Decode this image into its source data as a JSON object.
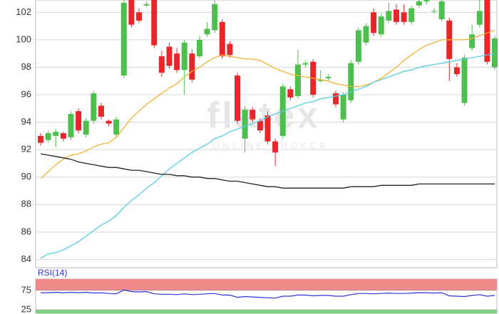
{
  "chart_data": [
    {
      "type": "candlestick",
      "open": [
        93.0,
        92.7,
        93.0,
        93.2,
        92.9,
        94.8,
        93.1,
        94.1,
        95.2,
        94.1,
        93.1,
        97.4,
        103.0,
        102.0,
        102.5,
        103.0,
        98.8,
        99.5,
        99.0,
        97.8,
        99.0,
        98.8,
        100.4,
        100.7,
        101.3,
        99.7,
        97.4,
        92.8,
        94.9,
        94.1,
        94.5,
        92.6,
        93.0,
        96.4,
        95.9,
        98.2,
        98.4,
        97.0,
        97.2,
        96.1,
        94.2,
        95.6,
        98.4,
        99.8,
        102.0,
        100.4,
        101.4,
        102.2,
        102.0,
        101.3,
        102.5,
        102.8,
        102.1,
        101.5,
        101.4,
        98.0,
        95.4,
        99.4,
        101.1,
        102.9,
        98.0
      ],
      "high": [
        93.2,
        93.4,
        93.5,
        93.3,
        94.8,
        95.0,
        94.3,
        96.3,
        95.4,
        94.2,
        94.4,
        103.0,
        103.3,
        102.3,
        102.8,
        103.2,
        99.2,
        99.8,
        99.4,
        100.0,
        99.3,
        100.3,
        101.3,
        103.0,
        101.5,
        99.9,
        97.6,
        95.2,
        95.1,
        94.3,
        94.8,
        92.8,
        96.8,
        96.6,
        99.3,
        98.5,
        98.6,
        97.8,
        97.5,
        96.3,
        96.2,
        98.5,
        100.9,
        101.2,
        102.3,
        101.9,
        102.7,
        102.6,
        102.6,
        102.5,
        103.0,
        103.0,
        102.3,
        103.0,
        101.6,
        98.3,
        98.9,
        101.1,
        102.9,
        103.0,
        100.3
      ],
      "low": [
        92.3,
        92.5,
        92.2,
        92.6,
        92.7,
        93.2,
        92.9,
        93.9,
        94.2,
        93.7,
        92.9,
        97.2,
        100.9,
        101.2,
        102.4,
        99.4,
        97.3,
        97.9,
        97.6,
        96.0,
        96.9,
        98.6,
        100.2,
        100.5,
        98.6,
        98.7,
        93.9,
        91.8,
        94.0,
        93.2,
        92.4,
        90.8,
        92.8,
        95.6,
        95.7,
        98.0,
        95.8,
        96.9,
        97.0,
        95.1,
        94.0,
        95.4,
        98.2,
        99.6,
        100.3,
        100.2,
        101.2,
        101.1,
        101.1,
        101.1,
        102.3,
        102.6,
        101.9,
        101.3,
        97.0,
        97.3,
        95.2,
        99.2,
        100.9,
        98.2,
        97.8
      ],
      "close": [
        92.5,
        93.2,
        93.3,
        92.8,
        94.6,
        93.4,
        94.1,
        96.1,
        94.4,
        93.9,
        94.2,
        102.7,
        101.1,
        101.4,
        102.6,
        99.6,
        97.6,
        98.1,
        97.8,
        99.8,
        97.1,
        100.0,
        100.8,
        102.6,
        98.8,
        98.9,
        94.1,
        94.9,
        94.2,
        93.4,
        92.6,
        91.8,
        96.6,
        95.8,
        98.2,
        98.3,
        96.0,
        97.1,
        97.3,
        95.3,
        96.0,
        98.3,
        100.7,
        101.0,
        100.5,
        101.7,
        102.1,
        101.3,
        101.3,
        102.3,
        102.8,
        103.0,
        102.1,
        102.8,
        98.6,
        97.5,
        98.7,
        100.4,
        102.1,
        98.4,
        100.1
      ],
      "up_color": "#4dbf4d",
      "down_color": "#e8262a",
      "overlays": [
        {
          "color": "#f2b233",
          "values": [
            89.9,
            90.4,
            90.9,
            91.3,
            91.6,
            91.7,
            91.9,
            92.2,
            92.4,
            92.5,
            92.9,
            93.6,
            94.3,
            94.8,
            95.3,
            95.7,
            96.1,
            96.5,
            96.8,
            97.3,
            97.7,
            98.0,
            98.4,
            98.7,
            98.9,
            98.8,
            98.7,
            98.6,
            98.6,
            98.5,
            98.2,
            97.9,
            97.7,
            97.5,
            97.4,
            97.3,
            97.2,
            97.1,
            97.0,
            96.8,
            96.7,
            96.6,
            96.6,
            96.7,
            96.9,
            97.2,
            97.6,
            98.0,
            98.5,
            98.9,
            99.3,
            99.6,
            99.8,
            100.0,
            100.0,
            100.0,
            100.0,
            100.1,
            100.3,
            100.5,
            100.7
          ]
        },
        {
          "color": "#55cfe6",
          "values": [
            84.1,
            84.4,
            84.5,
            84.7,
            85.0,
            85.3,
            85.7,
            86.1,
            86.5,
            86.8,
            87.2,
            87.8,
            88.3,
            88.7,
            89.2,
            89.6,
            90.1,
            90.6,
            91.0,
            91.4,
            91.8,
            92.1,
            92.4,
            92.8,
            93.0,
            93.3,
            93.5,
            93.7,
            93.9,
            94.1,
            94.4,
            94.6,
            94.8,
            95.0,
            95.2,
            95.4,
            95.5,
            95.7,
            95.8,
            95.9,
            96.0,
            96.2,
            96.4,
            96.6,
            96.9,
            97.1,
            97.3,
            97.5,
            97.7,
            97.8,
            98.0,
            98.1,
            98.2,
            98.3,
            98.4,
            98.5,
            98.6,
            98.7,
            98.8,
            98.9,
            99.0
          ]
        },
        {
          "color": "#222222",
          "values": [
            91.7,
            91.6,
            91.5,
            91.4,
            91.3,
            91.1,
            91.0,
            90.9,
            90.8,
            90.7,
            90.7,
            90.6,
            90.5,
            90.5,
            90.4,
            90.3,
            90.2,
            90.2,
            90.1,
            90.1,
            90.0,
            90.0,
            89.9,
            89.9,
            89.8,
            89.7,
            89.7,
            89.6,
            89.5,
            89.4,
            89.3,
            89.3,
            89.2,
            89.2,
            89.2,
            89.2,
            89.2,
            89.2,
            89.2,
            89.2,
            89.2,
            89.3,
            89.3,
            89.3,
            89.3,
            89.4,
            89.4,
            89.4,
            89.4,
            89.4,
            89.5,
            89.5,
            89.5,
            89.5,
            89.5,
            89.5,
            89.5,
            89.5,
            89.5,
            89.5,
            89.5
          ]
        }
      ],
      "ylim": [
        83.4,
        102.9
      ],
      "yticks": [
        84,
        86,
        88,
        90,
        92,
        94,
        96,
        98,
        100,
        102
      ],
      "grid": true,
      "watermark": {
        "logo": "flatex",
        "tagline": "ONLINE BROKER"
      }
    },
    {
      "type": "line",
      "title": "RSI(14)",
      "color": "#2b35d6",
      "values": [
        69,
        69,
        70,
        69,
        70,
        69,
        70,
        68,
        69,
        67,
        66,
        76,
        72,
        71,
        72,
        66,
        65,
        65,
        64,
        66,
        64,
        65,
        66,
        67,
        63,
        63,
        57,
        59,
        58,
        57,
        56,
        55,
        60,
        60,
        63,
        63,
        61,
        62,
        62,
        60,
        60,
        64,
        67,
        67,
        66,
        67,
        68,
        67,
        67,
        68,
        69,
        69,
        68,
        69,
        61,
        60,
        59,
        62,
        64,
        60,
        62
      ],
      "ylim": [
        16,
        104
      ],
      "yticks": [
        25,
        75
      ],
      "band_colors": [
        "#7dd27d",
        "#f08a8a"
      ]
    }
  ]
}
